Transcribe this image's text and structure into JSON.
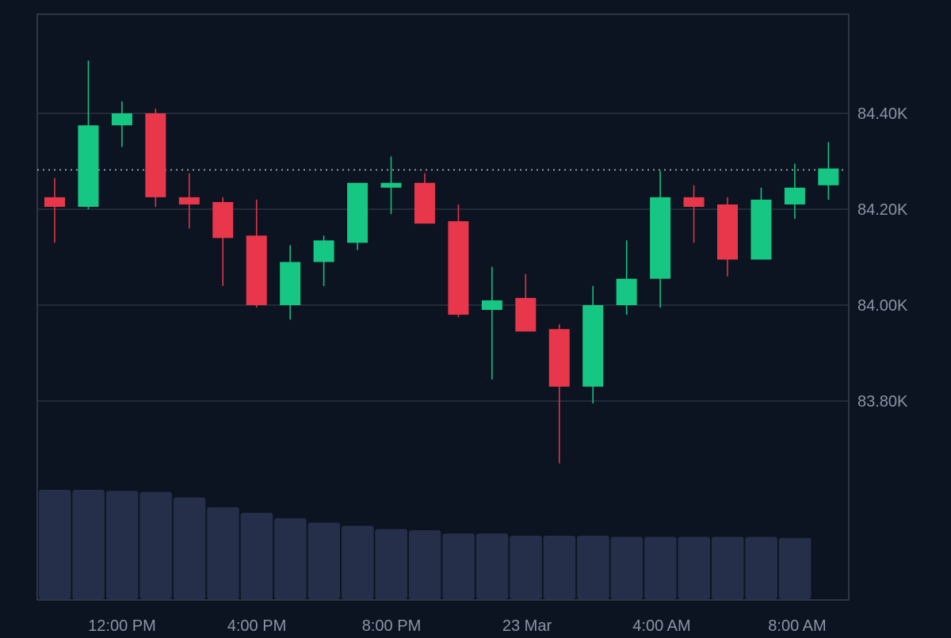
{
  "colors": {
    "background": "#0c1421",
    "grid": "#2a3140",
    "border": "#3a4150",
    "axis_text": "#8b93a5",
    "up": "#16c784",
    "down": "#e8374a",
    "volume": "#262f4a",
    "price_line": "#b7bcc8"
  },
  "chart_data": {
    "type": "candlestick",
    "y_ticks": [
      "84.40K",
      "84.20K",
      "84.00K",
      "83.80K"
    ],
    "y_tick_values": [
      84400,
      84200,
      84000,
      83800
    ],
    "x_ticks": [
      "12:00 PM",
      "4:00 PM",
      "8:00 PM",
      "23 Mar",
      "4:00 AM",
      "8:00 AM"
    ],
    "current_price": 84282,
    "grid": true,
    "candles": [
      {
        "open": 84225,
        "high": 84265,
        "low": 84130,
        "close": 84205
      },
      {
        "open": 84205,
        "high": 84510,
        "low": 84200,
        "close": 84375
      },
      {
        "open": 84375,
        "high": 84425,
        "low": 84330,
        "close": 84400
      },
      {
        "open": 84400,
        "high": 84410,
        "low": 84205,
        "close": 84225
      },
      {
        "open": 84225,
        "high": 84275,
        "low": 84160,
        "close": 84210
      },
      {
        "open": 84215,
        "high": 84225,
        "low": 84040,
        "close": 84140
      },
      {
        "open": 84145,
        "high": 84220,
        "low": 83995,
        "close": 84000
      },
      {
        "open": 84000,
        "high": 84125,
        "low": 83970,
        "close": 84090
      },
      {
        "open": 84090,
        "high": 84145,
        "low": 84040,
        "close": 84135
      },
      {
        "open": 84130,
        "high": 84255,
        "low": 84115,
        "close": 84255
      },
      {
        "open": 84245,
        "high": 84310,
        "low": 84190,
        "close": 84255
      },
      {
        "open": 84255,
        "high": 84275,
        "low": 84170,
        "close": 84170
      },
      {
        "open": 84175,
        "high": 84210,
        "low": 83975,
        "close": 83980
      },
      {
        "open": 83990,
        "high": 84080,
        "low": 83845,
        "close": 84010
      },
      {
        "open": 84015,
        "high": 84065,
        "low": 83945,
        "close": 83945
      },
      {
        "open": 83950,
        "high": 83960,
        "low": 83670,
        "close": 83830
      },
      {
        "open": 83830,
        "high": 84040,
        "low": 83795,
        "close": 84000
      },
      {
        "open": 84000,
        "high": 84135,
        "low": 83980,
        "close": 84055
      },
      {
        "open": 84055,
        "high": 84280,
        "low": 83995,
        "close": 84225
      },
      {
        "open": 84225,
        "high": 84250,
        "low": 84130,
        "close": 84205
      },
      {
        "open": 84210,
        "high": 84225,
        "low": 84060,
        "close": 84095
      },
      {
        "open": 84095,
        "high": 84245,
        "low": 84095,
        "close": 84220
      },
      {
        "open": 84210,
        "high": 84295,
        "low": 84180,
        "close": 84245
      },
      {
        "open": 84250,
        "high": 84340,
        "low": 84220,
        "close": 84285
      }
    ],
    "volume_relative": [
      1.0,
      1.0,
      0.99,
      0.98,
      0.93,
      0.84,
      0.79,
      0.74,
      0.7,
      0.67,
      0.64,
      0.63,
      0.6,
      0.6,
      0.58,
      0.58,
      0.58,
      0.57,
      0.57,
      0.57,
      0.57,
      0.57,
      0.56
    ]
  }
}
